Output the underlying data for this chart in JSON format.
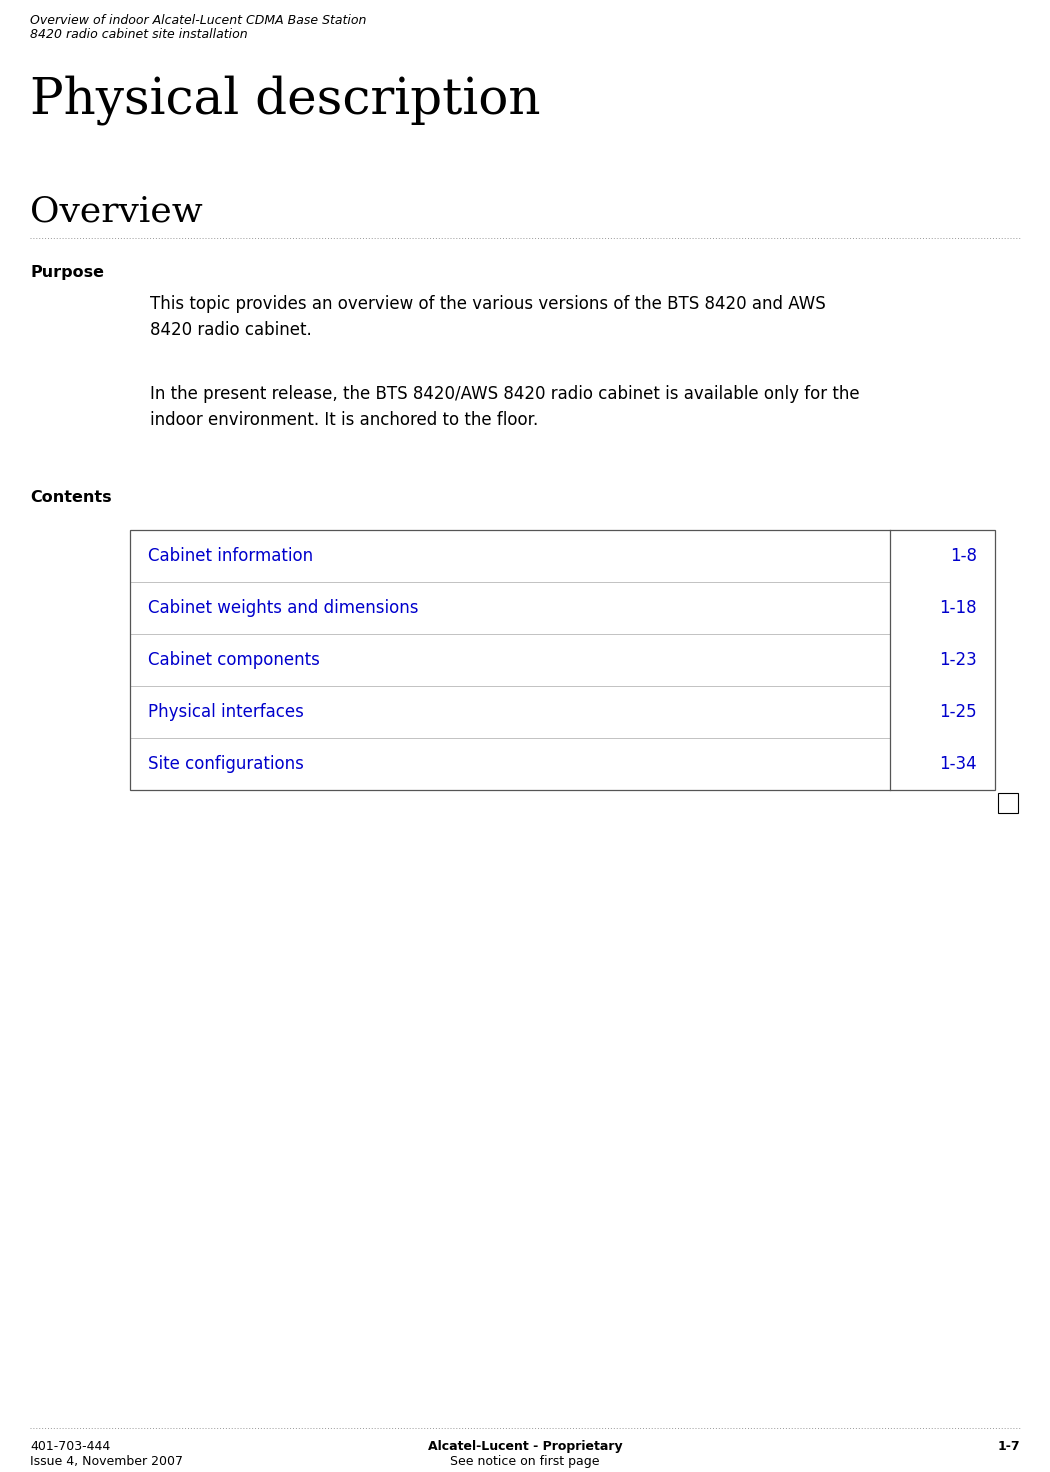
{
  "bg_color": "#ffffff",
  "header_line1": "Overview of indoor Alcatel-Lucent CDMA Base Station",
  "header_line2": "8420 radio cabinet site installation",
  "page_title": "Physical description",
  "section_title": "Overview",
  "dotted_line_color": "#999999",
  "purpose_label": "Purpose",
  "purpose_text1": "This topic provides an overview of the various versions of the BTS 8420 and AWS\n8420 radio cabinet.",
  "purpose_text2": "In the present release, the BTS 8420/AWS 8420 radio cabinet is available only for the\nindoor environment. It is anchored to the floor.",
  "contents_label": "Contents",
  "table_items": [
    {
      "label": "Cabinet information",
      "page": "1-8"
    },
    {
      "label": "Cabinet weights and dimensions",
      "page": "1-18"
    },
    {
      "label": "Cabinet components",
      "page": "1-23"
    },
    {
      "label": "Physical interfaces",
      "page": "1-25"
    },
    {
      "label": "Site configurations",
      "page": "1-34"
    }
  ],
  "table_link_color": "#0000cc",
  "table_border_color": "#555555",
  "footer_left_line1": "401-703-444",
  "footer_left_line2": "Issue 4, November 2007",
  "footer_center_line1": "Alcatel-Lucent - Proprietary",
  "footer_center_line2": "See notice on first page",
  "footer_right": "1-7",
  "header_font_size": 9,
  "title_font_size": 36,
  "section_font_size": 26,
  "label_font_size": 11.5,
  "body_font_size": 12,
  "table_font_size": 12,
  "footer_font_size": 9
}
